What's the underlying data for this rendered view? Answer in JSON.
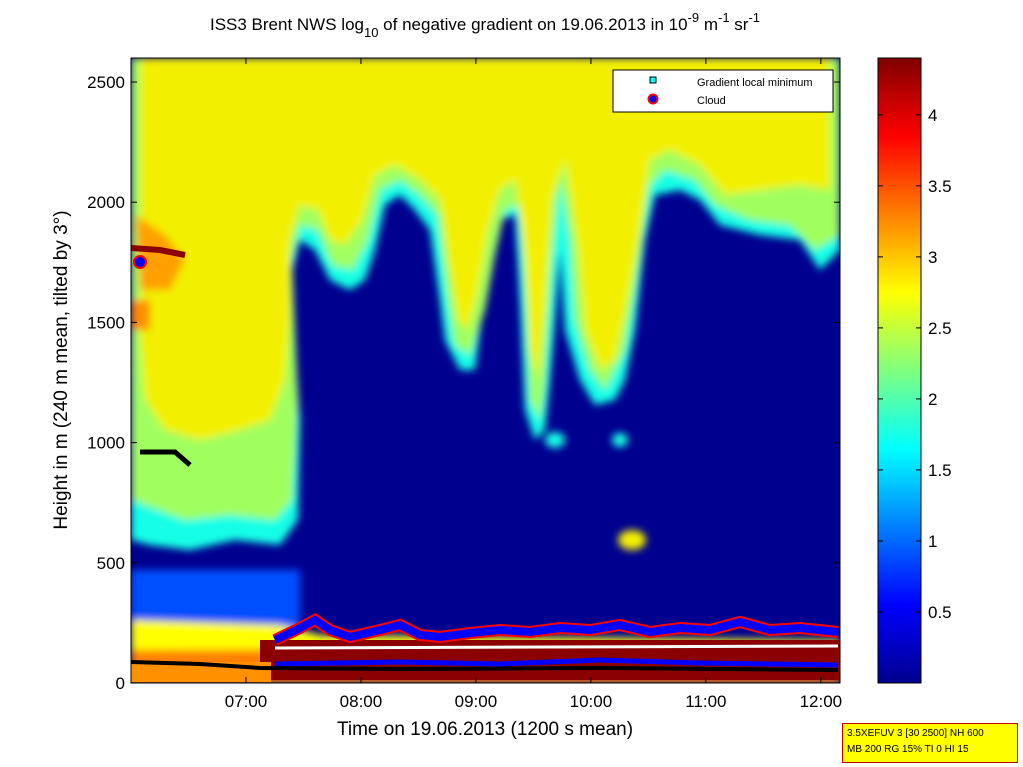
{
  "chart_data": {
    "type": "heatmap",
    "title_parts": {
      "pre": "ISS3 Brent NWS log",
      "sub": "10",
      "mid": " of negative gradient on 19.06.2013 in 10",
      "sup1": "-9",
      "m": " m",
      "sup2": "-1",
      "sr": " sr",
      "sup3": "-1"
    },
    "xlabel": "Time on 19.06.2013 (1200 s mean)",
    "ylabel": "Height in m (240 m mean, tilted by 3°)",
    "xlim": [
      "06:00",
      "12:10"
    ],
    "ylim": [
      0,
      2600
    ],
    "x_ticks": [
      "07:00",
      "08:00",
      "09:00",
      "10:00",
      "11:00",
      "12:00"
    ],
    "y_ticks": [
      0,
      500,
      1000,
      1500,
      2000,
      2500
    ],
    "colorbar": {
      "range": [
        0,
        4.4
      ],
      "ticks": [
        0.5,
        1,
        1.5,
        2,
        2.5,
        3,
        3.5,
        4
      ],
      "colormap": "jet"
    },
    "legend": {
      "position": "top-right",
      "entries": [
        {
          "label": "Gradient local minimum",
          "marker": "square",
          "color": "#00ffff"
        },
        {
          "label": "Cloud",
          "marker": "circle",
          "color": "#0000ff",
          "edge": "#ff0000"
        }
      ]
    },
    "colors": {
      "background_low": "#00008f",
      "high": "#800000"
    }
  },
  "info_box": {
    "line1": "3.5XEFUV 3 [30 2500] NH 600",
    "line2": "MB 200 RG 15% TI 0 HI 15"
  }
}
